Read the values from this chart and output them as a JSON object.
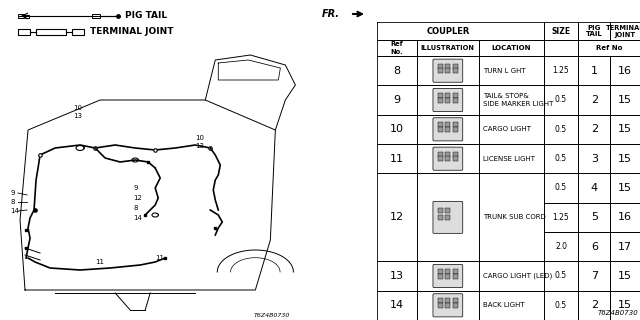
{
  "part_code": "T6Z4B0730",
  "bg_color": "#ffffff",
  "rows": [
    {
      "ref": "8",
      "location": "TURN L GHT",
      "sizes": [
        "1.25"
      ],
      "pig_tail": [
        "1"
      ],
      "terminal_joint": [
        "16"
      ]
    },
    {
      "ref": "9",
      "location": "TAIL& STOP&\nSIDE MARKER LIGHT",
      "sizes": [
        "0.5"
      ],
      "pig_tail": [
        "2"
      ],
      "terminal_joint": [
        "15"
      ]
    },
    {
      "ref": "10",
      "location": "CARGO LIGHT",
      "sizes": [
        "0.5"
      ],
      "pig_tail": [
        "2"
      ],
      "terminal_joint": [
        "15"
      ]
    },
    {
      "ref": "11",
      "location": "LICENSE LIGHT",
      "sizes": [
        "0.5"
      ],
      "pig_tail": [
        "3"
      ],
      "terminal_joint": [
        "15"
      ]
    },
    {
      "ref": "12",
      "location": "TRUNK SUB CORD",
      "sizes": [
        "0.5",
        "1.25",
        "2.0"
      ],
      "pig_tail": [
        "4",
        "5",
        "6"
      ],
      "terminal_joint": [
        "15",
        "16",
        "17"
      ]
    },
    {
      "ref": "13",
      "location": "CARGO LIGHT (LED)",
      "sizes": [
        "0.5"
      ],
      "pig_tail": [
        "7"
      ],
      "terminal_joint": [
        "15"
      ]
    },
    {
      "ref": "14",
      "location": "BACK LIGHT",
      "sizes": [
        "0.5"
      ],
      "pig_tail": [
        "2"
      ],
      "terminal_joint": [
        "15"
      ]
    }
  ]
}
